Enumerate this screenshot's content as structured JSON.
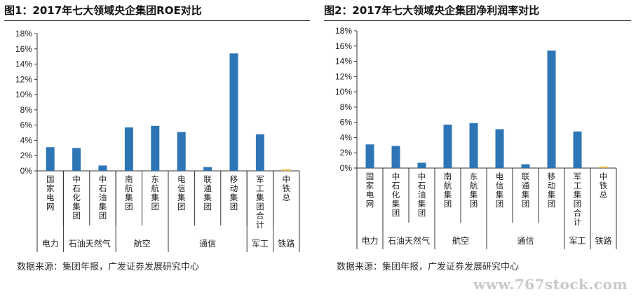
{
  "chart_data": [
    {
      "type": "bar",
      "title": "图1：2017年七大领域央企集团ROE对比",
      "categories": [
        "国家电网",
        "中石化集团",
        "中石油集团",
        "南航集团",
        "东航集团",
        "电信集团",
        "联通集团",
        "移动集团",
        "军工集团合计",
        "中铁总"
      ],
      "values": [
        3.1,
        3.0,
        0.7,
        5.7,
        5.9,
        5.1,
        0.5,
        15.4,
        4.8,
        0.2
      ],
      "groups": [
        {
          "label": "电力",
          "categories": [
            "国家电网"
          ]
        },
        {
          "label": "石油天然气",
          "categories": [
            "中石化集团",
            "中石油集团"
          ]
        },
        {
          "label": "航空",
          "categories": [
            "南航集团",
            "东航集团"
          ]
        },
        {
          "label": "通信",
          "categories": [
            "电信集团",
            "联通集团",
            "移动集团"
          ]
        },
        {
          "label": "军工",
          "categories": [
            "军工集团合计"
          ]
        },
        {
          "label": "铁路",
          "categories": [
            "中铁总"
          ]
        }
      ],
      "yticks": [
        "0%",
        "2%",
        "4%",
        "6%",
        "8%",
        "10%",
        "12%",
        "14%",
        "16%",
        "18%"
      ],
      "ylim": [
        0,
        18
      ],
      "grid": false,
      "colors": {
        "bar": "#2e75b6",
        "highlight": "#e0b84a"
      },
      "source": "数据来源：集团年报，广发证券发展研究中心"
    },
    {
      "type": "bar",
      "title": "图2：2017年七大领域央企集团净利润率对比",
      "categories": [
        "国家电网",
        "中石化集团",
        "中石油集团",
        "南航集团",
        "东航集团",
        "电信集团",
        "联通集团",
        "移动集团",
        "军工集团合计",
        "中铁总"
      ],
      "values": [
        3.1,
        2.9,
        0.7,
        5.7,
        5.9,
        5.1,
        0.5,
        15.4,
        4.8,
        0.2
      ],
      "groups": [
        {
          "label": "电力",
          "categories": [
            "国家电网"
          ]
        },
        {
          "label": "石油天然气",
          "categories": [
            "中石化集团",
            "中石油集团"
          ]
        },
        {
          "label": "航空",
          "categories": [
            "南航集团",
            "东航集团"
          ]
        },
        {
          "label": "通信",
          "categories": [
            "电信集团",
            "联通集团",
            "移动集团"
          ]
        },
        {
          "label": "军工",
          "categories": [
            "军工集团合计"
          ]
        },
        {
          "label": "铁路",
          "categories": [
            "中铁总"
          ]
        }
      ],
      "yticks": [
        "0%",
        "2%",
        "4%",
        "6%",
        "8%",
        "10%",
        "12%",
        "14%",
        "16%",
        "18%"
      ],
      "ylim": [
        0,
        18
      ],
      "grid": false,
      "colors": {
        "bar": "#2e75b6",
        "highlight": "#e0b84a"
      },
      "source": "数据来源：集团年报，广发证券发展研究中心"
    }
  ],
  "watermark": "www.767stock.com"
}
